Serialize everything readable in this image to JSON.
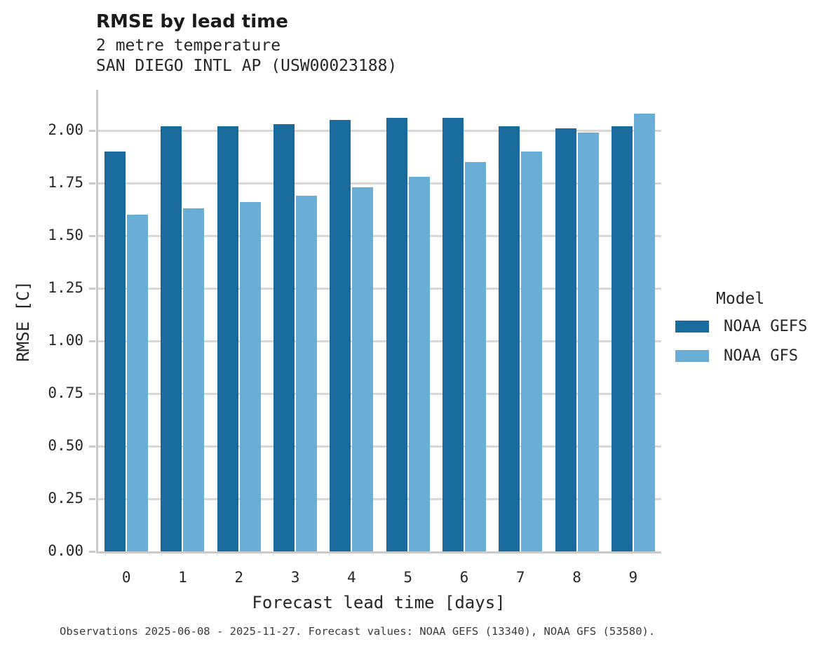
{
  "header": {
    "title": "RMSE by lead time",
    "subtitle_variable": "2 metre temperature",
    "subtitle_station": "SAN DIEGO INTL AP (USW00023188)"
  },
  "chart_data": {
    "type": "bar",
    "title": "RMSE by lead time",
    "subtitle": [
      "2 metre temperature",
      "SAN DIEGO INTL AP (USW00023188)"
    ],
    "xlabel": "Forecast lead time [days]",
    "ylabel": "RMSE [C]",
    "categories": [
      "0",
      "1",
      "2",
      "3",
      "4",
      "5",
      "6",
      "7",
      "8",
      "9"
    ],
    "series": [
      {
        "name": "NOAA GEFS",
        "color": "#186b9c",
        "values": [
          1.9,
          2.02,
          2.02,
          2.03,
          2.05,
          2.06,
          2.06,
          2.02,
          2.01,
          2.02
        ]
      },
      {
        "name": "NOAA GFS",
        "color": "#68aed7",
        "values": [
          1.6,
          1.63,
          1.66,
          1.69,
          1.73,
          1.78,
          1.85,
          1.9,
          1.99,
          2.08
        ]
      }
    ],
    "yticks": [
      0.0,
      0.25,
      0.5,
      0.75,
      1.0,
      1.25,
      1.5,
      1.75,
      2.0
    ],
    "ytick_labels": [
      "0.00",
      "0.25",
      "0.50",
      "0.75",
      "1.00",
      "1.25",
      "1.50",
      "1.75",
      "2.00"
    ],
    "ylim": [
      0,
      2.193
    ],
    "grid": true,
    "legend_position": "right"
  },
  "legend": {
    "title": "Model",
    "items": [
      {
        "label": "NOAA GEFS",
        "color": "#186b9c"
      },
      {
        "label": "NOAA GFS",
        "color": "#68aed7"
      }
    ]
  },
  "caption": "Observations 2025-06-08 - 2025-11-27. Forecast values: NOAA GEFS (13340), NOAA GFS (53580).",
  "colors": {
    "series_dark": "#186b9c",
    "series_light": "#68aed7",
    "gridline": "#d8d8d8",
    "spine": "#c9c9c9",
    "text": "#262626"
  }
}
